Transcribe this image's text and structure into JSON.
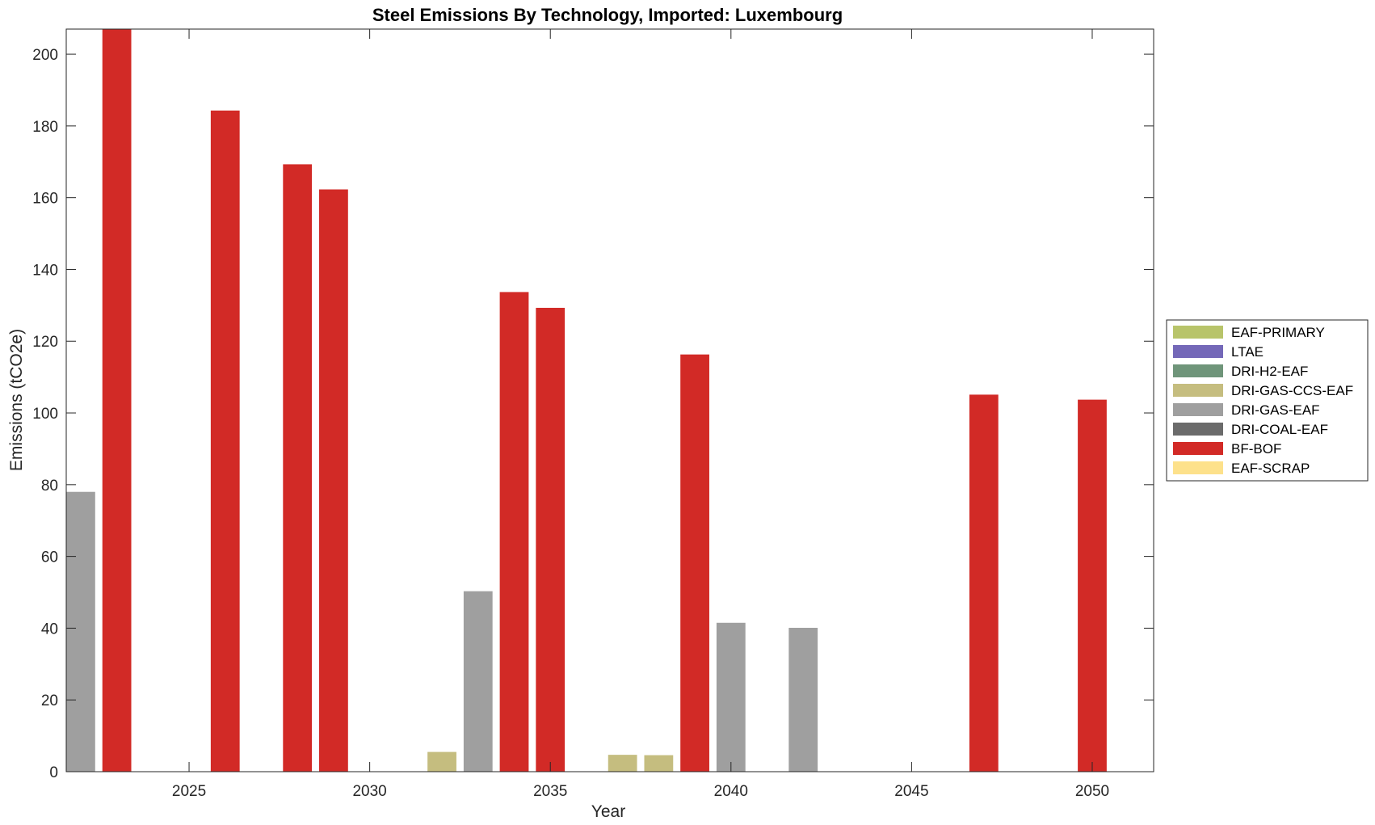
{
  "chart_data": {
    "type": "bar",
    "title": "Steel Emissions By Technology, Imported: Luxembourg",
    "xlabel": "Year",
    "ylabel": "Emissions (tCO2e)",
    "xlim": [
      2021.6,
      2051.7
    ],
    "ylim": [
      0,
      207
    ],
    "xticks": [
      2025,
      2030,
      2035,
      2040,
      2045,
      2050
    ],
    "yticks": [
      0,
      20,
      40,
      60,
      80,
      100,
      120,
      140,
      160,
      180,
      200
    ],
    "grid": false,
    "legend_position": "right",
    "series": [
      {
        "name": "EAF-PRIMARY",
        "color": "#b8c46a",
        "points": []
      },
      {
        "name": "LTAE",
        "color": "#7468b8",
        "points": []
      },
      {
        "name": "DRI-H2-EAF",
        "color": "#6f957a",
        "points": []
      },
      {
        "name": "DRI-GAS-CCS-EAF",
        "color": "#c5bd7f",
        "points": [
          {
            "x": 2032,
            "y": 5.5
          },
          {
            "x": 2037,
            "y": 4.7
          },
          {
            "x": 2038,
            "y": 4.6
          }
        ]
      },
      {
        "name": "DRI-GAS-EAF",
        "color": "#9f9f9f",
        "points": [
          {
            "x": 2022,
            "y": 78
          },
          {
            "x": 2033,
            "y": 50.3
          },
          {
            "x": 2040,
            "y": 41.5
          },
          {
            "x": 2042,
            "y": 40.1
          }
        ]
      },
      {
        "name": "DRI-COAL-EAF",
        "color": "#6b6b6b",
        "points": []
      },
      {
        "name": "BF-BOF",
        "color": "#d22a26",
        "points": [
          {
            "x": 2023,
            "y": 207
          },
          {
            "x": 2026,
            "y": 184.3
          },
          {
            "x": 2028,
            "y": 169.3
          },
          {
            "x": 2029,
            "y": 162.3
          },
          {
            "x": 2034,
            "y": 133.7
          },
          {
            "x": 2035,
            "y": 129.3
          },
          {
            "x": 2039,
            "y": 116.3
          },
          {
            "x": 2047,
            "y": 105.1
          },
          {
            "x": 2050,
            "y": 103.7
          }
        ]
      },
      {
        "name": "EAF-SCRAP",
        "color": "#fde18b",
        "points": []
      }
    ]
  }
}
